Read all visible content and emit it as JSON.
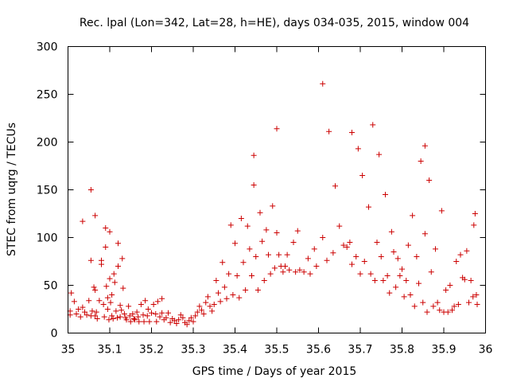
{
  "chart_data": {
    "type": "scatter",
    "title": "Rec. lpal (Lon=342, Lat=28, h=HE), days 034-035, 2015, window 004",
    "xlabel": "GPS time / Days of year 2015",
    "ylabel": "STEC from uqrg / TECUs",
    "xlim": [
      35,
      36
    ],
    "ylim": [
      0,
      300
    ],
    "xticks": [
      "35",
      "35.1",
      "35.2",
      "35.3",
      "35.4",
      "35.5",
      "35.6",
      "35.7",
      "35.8",
      "35.9",
      "36"
    ],
    "yticks": [
      "0",
      "50",
      "100",
      "150",
      "200",
      "250",
      "300"
    ],
    "grid": false,
    "legend": "none",
    "marker": "plus",
    "color": "#cc0000",
    "points": [
      [
        35.005,
        19
      ],
      [
        35.005,
        23
      ],
      [
        35.008,
        42
      ],
      [
        35.015,
        33
      ],
      [
        35.02,
        20
      ],
      [
        35.025,
        25
      ],
      [
        35.03,
        17
      ],
      [
        35.035,
        27
      ],
      [
        35.04,
        22
      ],
      [
        35.045,
        19
      ],
      [
        35.05,
        34
      ],
      [
        35.055,
        18
      ],
      [
        35.058,
        23
      ],
      [
        35.035,
        117
      ],
      [
        35.055,
        150
      ],
      [
        35.055,
        76
      ],
      [
        35.065,
        123
      ],
      [
        35.065,
        45
      ],
      [
        35.062,
        48
      ],
      [
        35.065,
        18
      ],
      [
        35.068,
        22
      ],
      [
        35.07,
        15
      ],
      [
        35.075,
        34
      ],
      [
        35.08,
        76
      ],
      [
        35.08,
        72
      ],
      [
        35.085,
        30
      ],
      [
        35.087,
        17
      ],
      [
        35.09,
        110
      ],
      [
        35.09,
        90
      ],
      [
        35.092,
        49
      ],
      [
        35.095,
        25
      ],
      [
        35.095,
        37
      ],
      [
        35.098,
        14
      ],
      [
        35.1,
        106
      ],
      [
        35.1,
        57
      ],
      [
        35.102,
        32
      ],
      [
        35.105,
        40
      ],
      [
        35.105,
        18
      ],
      [
        35.108,
        15
      ],
      [
        35.11,
        62
      ],
      [
        35.112,
        53
      ],
      [
        35.115,
        23
      ],
      [
        35.118,
        16
      ],
      [
        35.12,
        94
      ],
      [
        35.12,
        70
      ],
      [
        35.125,
        29
      ],
      [
        35.125,
        17
      ],
      [
        35.128,
        24
      ],
      [
        35.13,
        78
      ],
      [
        35.132,
        47
      ],
      [
        35.135,
        20
      ],
      [
        35.138,
        16
      ],
      [
        35.14,
        14
      ],
      [
        35.145,
        28
      ],
      [
        35.148,
        18
      ],
      [
        35.15,
        12
      ],
      [
        35.155,
        20
      ],
      [
        35.158,
        15
      ],
      [
        35.16,
        14
      ],
      [
        35.165,
        22
      ],
      [
        35.168,
        17
      ],
      [
        35.17,
        12
      ],
      [
        35.175,
        30
      ],
      [
        35.18,
        19
      ],
      [
        35.182,
        12
      ],
      [
        35.185,
        34
      ],
      [
        35.19,
        18
      ],
      [
        35.192,
        25
      ],
      [
        35.195,
        12
      ],
      [
        35.2,
        21
      ],
      [
        35.205,
        30
      ],
      [
        35.21,
        20
      ],
      [
        35.212,
        12
      ],
      [
        35.215,
        33
      ],
      [
        35.22,
        17
      ],
      [
        35.225,
        21
      ],
      [
        35.225,
        36
      ],
      [
        35.23,
        14
      ],
      [
        35.235,
        16
      ],
      [
        35.24,
        21
      ],
      [
        35.245,
        11
      ],
      [
        35.25,
        15
      ],
      [
        35.255,
        13
      ],
      [
        35.26,
        10
      ],
      [
        35.265,
        14
      ],
      [
        35.27,
        19
      ],
      [
        35.275,
        16
      ],
      [
        35.28,
        11
      ],
      [
        35.285,
        9
      ],
      [
        35.29,
        13
      ],
      [
        35.295,
        16
      ],
      [
        35.3,
        12
      ],
      [
        35.305,
        18
      ],
      [
        35.31,
        22
      ],
      [
        35.315,
        28
      ],
      [
        35.32,
        24
      ],
      [
        35.325,
        20
      ],
      [
        35.33,
        32
      ],
      [
        35.335,
        38
      ],
      [
        35.34,
        28
      ],
      [
        35.345,
        23
      ],
      [
        35.35,
        30
      ],
      [
        35.355,
        55
      ],
      [
        35.36,
        42
      ],
      [
        35.365,
        33
      ],
      [
        35.37,
        74
      ],
      [
        35.375,
        48
      ],
      [
        35.38,
        36
      ],
      [
        35.385,
        62
      ],
      [
        35.39,
        113
      ],
      [
        35.395,
        40
      ],
      [
        35.4,
        94
      ],
      [
        35.405,
        60
      ],
      [
        35.41,
        37
      ],
      [
        35.415,
        120
      ],
      [
        35.42,
        74
      ],
      [
        35.425,
        45
      ],
      [
        35.43,
        112
      ],
      [
        35.435,
        88
      ],
      [
        35.44,
        60
      ],
      [
        35.445,
        186
      ],
      [
        35.445,
        155
      ],
      [
        35.45,
        80
      ],
      [
        35.455,
        45
      ],
      [
        35.46,
        126
      ],
      [
        35.465,
        96
      ],
      [
        35.47,
        55
      ],
      [
        35.475,
        108
      ],
      [
        35.48,
        82
      ],
      [
        35.485,
        62
      ],
      [
        35.49,
        133
      ],
      [
        35.495,
        68
      ],
      [
        35.5,
        214
      ],
      [
        35.5,
        105
      ],
      [
        35.505,
        82
      ],
      [
        35.51,
        70
      ],
      [
        35.515,
        64
      ],
      [
        35.52,
        70
      ],
      [
        35.525,
        82
      ],
      [
        35.53,
        66
      ],
      [
        35.54,
        95
      ],
      [
        35.545,
        64
      ],
      [
        35.55,
        107
      ],
      [
        35.555,
        66
      ],
      [
        35.565,
        64
      ],
      [
        35.575,
        78
      ],
      [
        35.58,
        62
      ],
      [
        35.59,
        88
      ],
      [
        35.595,
        70
      ],
      [
        35.61,
        261
      ],
      [
        35.61,
        100
      ],
      [
        35.62,
        76
      ],
      [
        35.625,
        211
      ],
      [
        35.635,
        84
      ],
      [
        35.64,
        154
      ],
      [
        35.65,
        112
      ],
      [
        35.66,
        92
      ],
      [
        35.668,
        90
      ],
      [
        35.675,
        95
      ],
      [
        35.68,
        210
      ],
      [
        35.68,
        72
      ],
      [
        35.69,
        80
      ],
      [
        35.695,
        193
      ],
      [
        35.7,
        62
      ],
      [
        35.705,
        165
      ],
      [
        35.71,
        75
      ],
      [
        35.72,
        132
      ],
      [
        35.725,
        62
      ],
      [
        35.73,
        218
      ],
      [
        35.735,
        55
      ],
      [
        35.74,
        95
      ],
      [
        35.745,
        187
      ],
      [
        35.75,
        80
      ],
      [
        35.755,
        55
      ],
      [
        35.76,
        145
      ],
      [
        35.765,
        60
      ],
      [
        35.77,
        42
      ],
      [
        35.775,
        106
      ],
      [
        35.78,
        85
      ],
      [
        35.785,
        48
      ],
      [
        35.79,
        78
      ],
      [
        35.795,
        60
      ],
      [
        35.8,
        67
      ],
      [
        35.805,
        38
      ],
      [
        35.81,
        55
      ],
      [
        35.815,
        92
      ],
      [
        35.82,
        40
      ],
      [
        35.825,
        123
      ],
      [
        35.83,
        28
      ],
      [
        35.835,
        80
      ],
      [
        35.84,
        52
      ],
      [
        35.845,
        180
      ],
      [
        35.85,
        32
      ],
      [
        35.855,
        196
      ],
      [
        35.855,
        104
      ],
      [
        35.86,
        22
      ],
      [
        35.865,
        160
      ],
      [
        35.87,
        64
      ],
      [
        35.875,
        28
      ],
      [
        35.88,
        88
      ],
      [
        35.885,
        32
      ],
      [
        35.89,
        24
      ],
      [
        35.895,
        128
      ],
      [
        35.9,
        22
      ],
      [
        35.905,
        45
      ],
      [
        35.91,
        22
      ],
      [
        35.915,
        50
      ],
      [
        35.92,
        24
      ],
      [
        35.925,
        28
      ],
      [
        35.93,
        75
      ],
      [
        35.935,
        30
      ],
      [
        35.94,
        82
      ],
      [
        35.945,
        58
      ],
      [
        35.95,
        56
      ],
      [
        35.955,
        86
      ],
      [
        35.96,
        32
      ],
      [
        35.965,
        55
      ],
      [
        35.97,
        38
      ],
      [
        35.972,
        113
      ],
      [
        35.975,
        125
      ],
      [
        35.978,
        40
      ],
      [
        35.98,
        30
      ]
    ]
  }
}
